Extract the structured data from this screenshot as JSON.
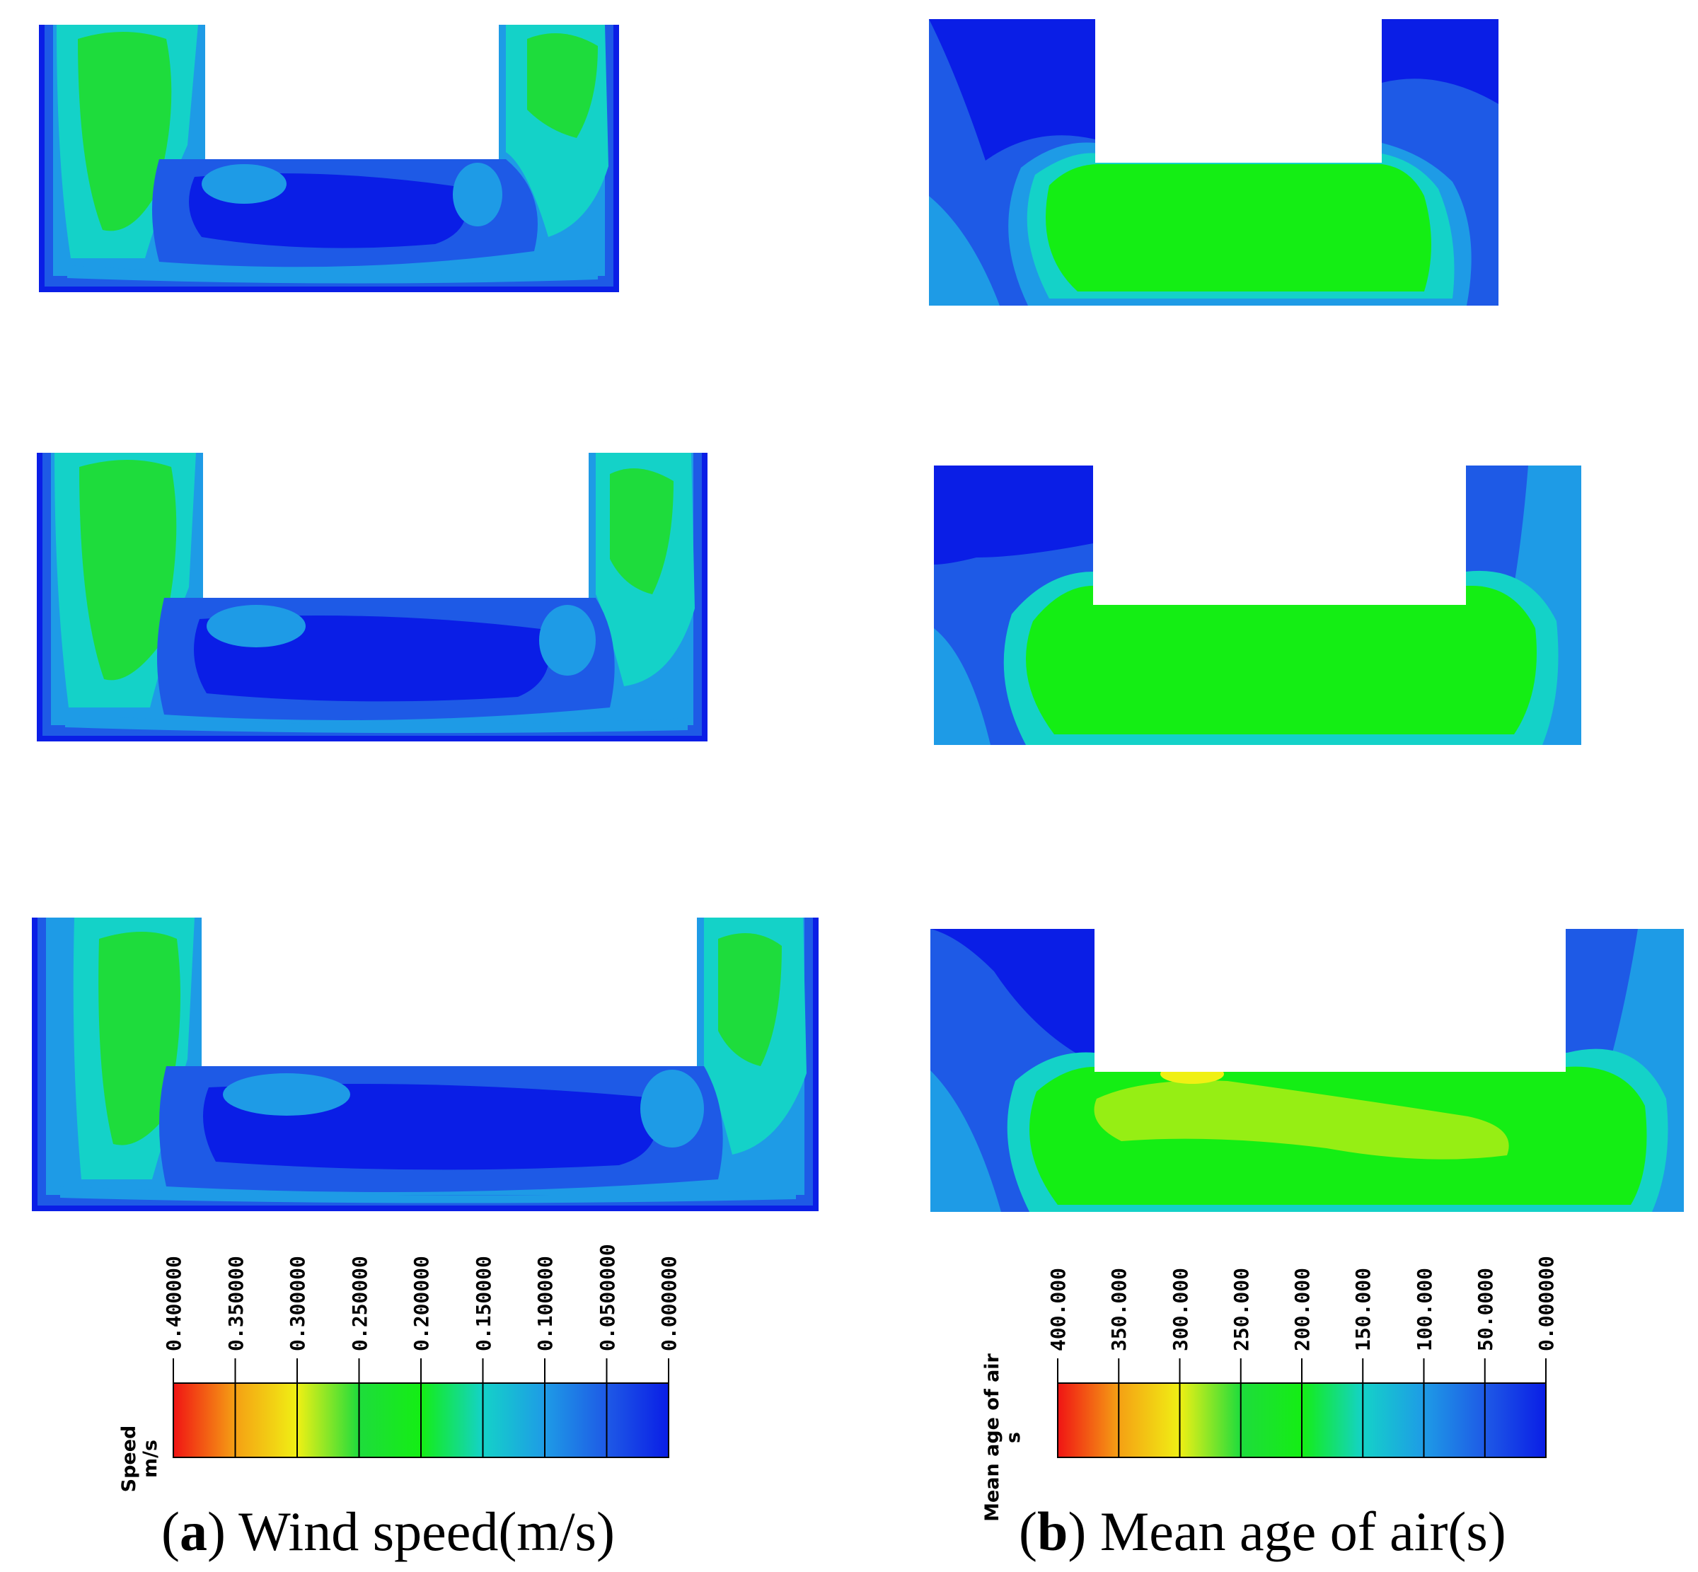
{
  "figure": {
    "panels": [
      {
        "key": "a",
        "quantity": "Wind speed"
      },
      {
        "key": "b",
        "quantity": "Mean age of air"
      }
    ]
  },
  "legend_speed": {
    "title_line1": "Speed",
    "title_line2": "m/s",
    "ticks": [
      "0.400000",
      "0.350000",
      "0.300000",
      "0.250000",
      "0.200000",
      "0.150000",
      "0.100000",
      "0.0500000",
      "0.000000"
    ]
  },
  "legend_age": {
    "title_line1": "Mean age of air",
    "title_line2": "s",
    "ticks": [
      "400.000",
      "350.000",
      "300.000",
      "250.000",
      "200.000",
      "150.000",
      "100.000",
      "50.0000",
      "0.000000"
    ]
  },
  "captions": {
    "a_letter": "a",
    "a_text": "Wind speed(m/s)",
    "b_letter": "b",
    "b_text": "Mean age of air(s)"
  },
  "colors": {
    "blue": "#0a1ee6",
    "blue_mid": "#1e5ae6",
    "cyan_blue": "#1e9be6",
    "cyan": "#14d2c8",
    "green": "#1edc3c",
    "bright_green": "#14ee14",
    "yellow_green": "#96ee14",
    "yellow": "#f0f014",
    "orange": "#f5a014",
    "red": "#f01414"
  }
}
